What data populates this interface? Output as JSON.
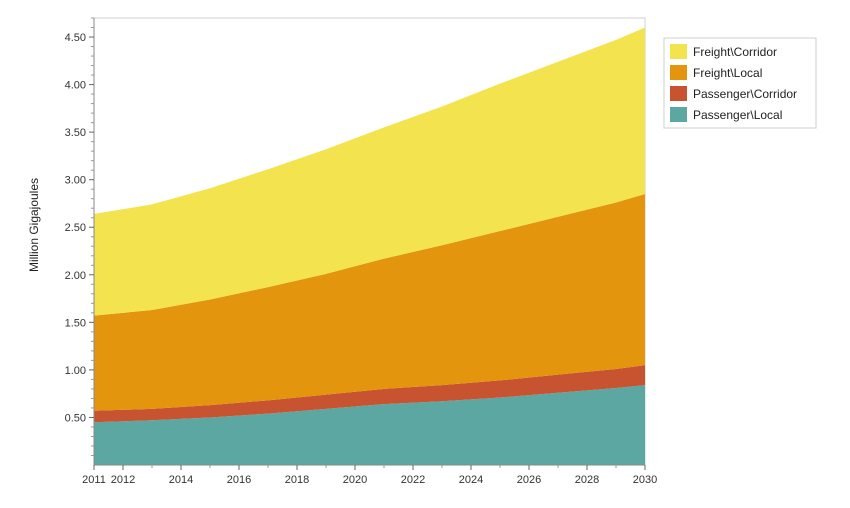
{
  "chart_data": {
    "type": "area",
    "stacked": true,
    "title": "",
    "xlabel": "",
    "ylabel": "Million Gigajoules",
    "x": [
      2011,
      2013,
      2015,
      2017,
      2019,
      2021,
      2023,
      2025,
      2027,
      2029,
      2030
    ],
    "x_ticks": [
      2011,
      2012,
      2014,
      2016,
      2018,
      2020,
      2022,
      2024,
      2026,
      2028,
      2030
    ],
    "y_ticks": [
      0.5,
      1.0,
      1.5,
      2.0,
      2.5,
      3.0,
      3.5,
      4.0,
      4.5
    ],
    "y_tick_labels": [
      "0.50",
      "1.00",
      "1.50",
      "2.00",
      "2.50",
      "3.00",
      "3.50",
      "4.00",
      "4.50"
    ],
    "xlim": [
      2011,
      2030
    ],
    "ylim": [
      0,
      4.7
    ],
    "grid": false,
    "legend_position": "top-right",
    "series": [
      {
        "name": "Passenger\\Local",
        "color": "#5ca7a1",
        "values": [
          0.45,
          0.47,
          0.5,
          0.54,
          0.59,
          0.64,
          0.67,
          0.71,
          0.76,
          0.81,
          0.84
        ]
      },
      {
        "name": "Passenger\\Corridor",
        "color": "#c75331",
        "values": [
          0.12,
          0.12,
          0.13,
          0.14,
          0.15,
          0.16,
          0.17,
          0.18,
          0.19,
          0.2,
          0.21
        ]
      },
      {
        "name": "Freight\\Local",
        "color": "#e3960d",
        "values": [
          1.0,
          1.04,
          1.11,
          1.19,
          1.27,
          1.37,
          1.47,
          1.57,
          1.66,
          1.75,
          1.8
        ]
      },
      {
        "name": "Freight\\Corridor",
        "color": "#f3e44f",
        "values": [
          1.07,
          1.11,
          1.17,
          1.24,
          1.31,
          1.38,
          1.46,
          1.55,
          1.63,
          1.71,
          1.75
        ]
      }
    ],
    "legend_order": [
      "Freight\\Corridor",
      "Freight\\Local",
      "Passenger\\Corridor",
      "Passenger\\Local"
    ]
  }
}
